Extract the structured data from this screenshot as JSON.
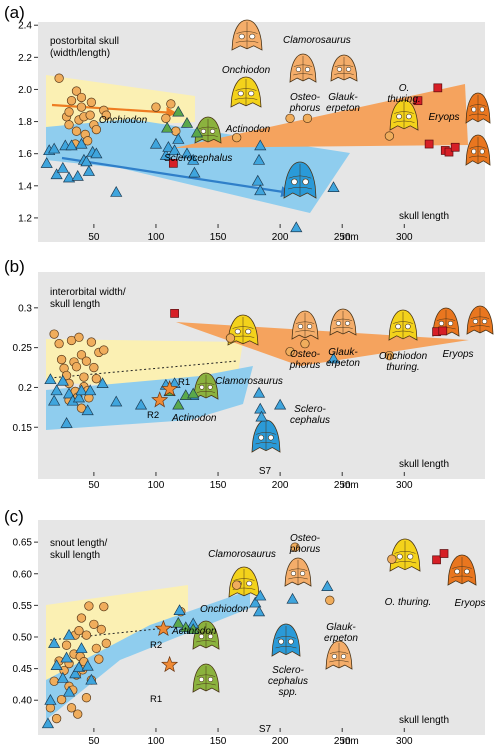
{
  "chart_data": [
    {
      "type": "scatter",
      "panel_label": "(a)",
      "ylabel_lines": [
        "postorbital skull",
        "(width/length)"
      ],
      "xlabel": "skull length",
      "x_unit": "mm",
      "x_ticks": [
        50,
        100,
        150,
        200,
        250,
        300
      ],
      "y_ticks": [
        1.2,
        1.4,
        1.6,
        1.8,
        2.0,
        2.2,
        2.4
      ],
      "y_tick_labels": [
        "1.2",
        "1.4",
        "1.6",
        "1.8",
        "2.0",
        "2.2",
        "2.4"
      ],
      "xlim": [
        5,
        365
      ],
      "ylim": [
        1.05,
        2.42
      ],
      "series": [
        {
          "marker": "circle",
          "color": "#f0ad5c",
          "points": [
            [
              22,
              2.07
            ],
            [
              28,
              1.83
            ],
            [
              30,
              1.78
            ],
            [
              30,
              1.86
            ],
            [
              32,
              1.93
            ],
            [
              35,
              1.66
            ],
            [
              36,
              1.74
            ],
            [
              36,
              1.99
            ],
            [
              38,
              1.81
            ],
            [
              40,
              1.89
            ],
            [
              40,
              1.95
            ],
            [
              42,
              1.83
            ],
            [
              43,
              1.72
            ],
            [
              45,
              1.68
            ],
            [
              47,
              1.84
            ],
            [
              48,
              1.92
            ],
            [
              50,
              1.78
            ],
            [
              52,
              1.75
            ],
            [
              58,
              1.87
            ],
            [
              60,
              1.84
            ],
            [
              100,
              1.89
            ],
            [
              108,
              1.82
            ],
            [
              112,
              1.91
            ],
            [
              116,
              1.74
            ],
            [
              165,
              1.7
            ],
            [
              208,
              1.82
            ],
            [
              222,
              1.82
            ],
            [
              288,
              1.71
            ]
          ]
        },
        {
          "marker": "triangle",
          "color": "#3fa5dd",
          "points": [
            [
              12,
              1.54
            ],
            [
              14,
              1.62
            ],
            [
              18,
              1.63
            ],
            [
              20,
              1.47
            ],
            [
              25,
              1.51
            ],
            [
              27,
              1.65
            ],
            [
              30,
              1.45
            ],
            [
              32,
              1.65
            ],
            [
              37,
              1.46
            ],
            [
              40,
              1.66
            ],
            [
              42,
              1.56
            ],
            [
              44,
              1.55
            ],
            [
              46,
              1.49
            ],
            [
              49,
              1.61
            ],
            [
              52,
              1.6
            ],
            [
              68,
              1.36
            ],
            [
              100,
              1.66
            ],
            [
              108,
              1.59
            ],
            [
              110,
              1.64
            ],
            [
              115,
              1.62
            ],
            [
              118,
              1.69
            ],
            [
              125,
              1.6
            ],
            [
              130,
              1.56
            ],
            [
              131,
              1.48
            ],
            [
              182,
              1.43
            ],
            [
              183,
              1.56
            ],
            [
              184,
              1.65
            ],
            [
              184,
              1.37
            ],
            [
              213,
              1.14
            ],
            [
              243,
              1.39
            ]
          ]
        },
        {
          "marker": "triangle",
          "color": "#5aa84a",
          "points": [
            [
              109,
              1.76
            ],
            [
              118,
              1.86
            ],
            [
              125,
              1.79
            ],
            [
              133,
              1.73
            ]
          ]
        },
        {
          "marker": "square",
          "color": "#d61f26",
          "points": [
            [
              114,
              1.54
            ],
            [
              311,
              1.93
            ],
            [
              320,
              1.66
            ],
            [
              327,
              2.01
            ],
            [
              333,
              1.62
            ],
            [
              336,
              1.61
            ],
            [
              341,
              1.64
            ]
          ]
        }
      ],
      "annotations": [
        "Clamorosaurus",
        "Onchiodon",
        "Osteo-",
        "phorus",
        "Glauk-",
        "erpeton",
        "O.",
        "thuring.",
        "Eryops",
        "Onchiodon",
        "Actinodon",
        "Sclerocephalus"
      ]
    },
    {
      "type": "scatter",
      "panel_label": "(b)",
      "ylabel_lines": [
        "interorbital width/",
        "skull length"
      ],
      "xlabel": "skull length",
      "x_unit": "mm",
      "x_ticks": [
        50,
        100,
        150,
        200,
        250,
        300
      ],
      "y_ticks": [
        0.15,
        0.2,
        0.25,
        0.3
      ],
      "y_tick_labels": [
        "0.15",
        "0.2",
        "0.25",
        "0.3"
      ],
      "xlim": [
        5,
        365
      ],
      "ylim": [
        0.085,
        0.345
      ],
      "series": [
        {
          "marker": "circle",
          "color": "#f0ad5c",
          "points": [
            [
              18,
              0.267
            ],
            [
              22,
              0.255
            ],
            [
              24,
              0.235
            ],
            [
              26,
              0.224
            ],
            [
              28,
              0.215
            ],
            [
              30,
              0.205
            ],
            [
              30,
              0.184
            ],
            [
              32,
              0.259
            ],
            [
              34,
              0.232
            ],
            [
              35,
              0.195
            ],
            [
              36,
              0.226
            ],
            [
              37,
              0.188
            ],
            [
              38,
              0.263
            ],
            [
              40,
              0.241
            ],
            [
              40,
              0.174
            ],
            [
              42,
              0.213
            ],
            [
              42,
              0.201
            ],
            [
              44,
              0.233
            ],
            [
              45,
              0.196
            ],
            [
              46,
              0.187
            ],
            [
              48,
              0.257
            ],
            [
              50,
              0.225
            ],
            [
              52,
              0.211
            ],
            [
              54,
              0.244
            ],
            [
              58,
              0.247
            ],
            [
              160,
              0.262
            ],
            [
              208,
              0.245
            ],
            [
              220,
              0.255
            ],
            [
              288,
              0.24
            ]
          ]
        },
        {
          "marker": "triangle",
          "color": "#3fa5dd",
          "points": [
            [
              15,
              0.21
            ],
            [
              18,
              0.183
            ],
            [
              20,
              0.196
            ],
            [
              25,
              0.208
            ],
            [
              28,
              0.155
            ],
            [
              30,
              0.192
            ],
            [
              33,
              0.183
            ],
            [
              38,
              0.187
            ],
            [
              40,
              0.196
            ],
            [
              45,
              0.171
            ],
            [
              47,
              0.196
            ],
            [
              57,
              0.205
            ],
            [
              68,
              0.182
            ],
            [
              88,
              0.178
            ],
            [
              108,
              0.203
            ],
            [
              115,
              0.205
            ],
            [
              130,
              0.19
            ],
            [
              183,
              0.193
            ],
            [
              184,
              0.173
            ],
            [
              185,
              0.163
            ],
            [
              200,
              0.178
            ],
            [
              243,
              0.236
            ]
          ]
        },
        {
          "marker": "triangle",
          "color": "#5aa84a",
          "points": [
            [
              111,
              0.195
            ],
            [
              118,
              0.178
            ],
            [
              124,
              0.19
            ],
            [
              130,
              0.192
            ]
          ]
        },
        {
          "marker": "star",
          "color": "#ef8a35",
          "points": [
            [
              103,
              0.184
            ],
            [
              111,
              0.198
            ]
          ]
        },
        {
          "marker": "square",
          "color": "#d61f26",
          "points": [
            [
              115,
              0.293
            ],
            [
              326,
              0.27
            ],
            [
              331,
              0.271
            ]
          ]
        }
      ],
      "trend_line": [
        [
          15,
          0.203
        ],
        [
          160,
          0.238
        ]
      ],
      "annotations": [
        "R1",
        "R2",
        "Actinodon",
        "Clamorosaurus",
        "Osteo-",
        "phorus",
        "Glauk-",
        "erpeton",
        "Onchiodon",
        "thuring.",
        "Eryops",
        "Sclero-",
        "cephalus",
        "S7"
      ]
    },
    {
      "type": "scatter",
      "panel_label": "(c)",
      "ylabel_lines": [
        "snout length/",
        "skull length"
      ],
      "xlabel": "skull length",
      "x_unit": "mm",
      "x_ticks": [
        50,
        100,
        150,
        200,
        250,
        300
      ],
      "y_ticks": [
        0.4,
        0.45,
        0.5,
        0.55,
        0.6,
        0.65
      ],
      "y_tick_labels": [
        "0.40",
        "0.45",
        "0.50",
        "0.55",
        "0.60",
        "0.65"
      ],
      "xlim": [
        5,
        365
      ],
      "ylim": [
        0.345,
        0.685
      ],
      "series": [
        {
          "marker": "circle",
          "color": "#f0ad5c",
          "points": [
            [
              15,
              0.388
            ],
            [
              18,
              0.43
            ],
            [
              20,
              0.371
            ],
            [
              22,
              0.462
            ],
            [
              24,
              0.401
            ],
            [
              26,
              0.447
            ],
            [
              28,
              0.487
            ],
            [
              30,
              0.422
            ],
            [
              30,
              0.458
            ],
            [
              32,
              0.388
            ],
            [
              33,
              0.416
            ],
            [
              34,
              0.473
            ],
            [
              35,
              0.503
            ],
            [
              36,
              0.44
            ],
            [
              37,
              0.378
            ],
            [
              38,
              0.51
            ],
            [
              39,
              0.469
            ],
            [
              40,
              0.53
            ],
            [
              41,
              0.448
            ],
            [
              42,
              0.461
            ],
            [
              44,
              0.404
            ],
            [
              44,
              0.503
            ],
            [
              46,
              0.549
            ],
            [
              48,
              0.432
            ],
            [
              50,
              0.52
            ],
            [
              52,
              0.482
            ],
            [
              54,
              0.465
            ],
            [
              56,
              0.512
            ],
            [
              58,
              0.548
            ],
            [
              60,
              0.49
            ],
            [
              120,
              0.54
            ],
            [
              165,
              0.582
            ],
            [
              212,
              0.642
            ],
            [
              240,
              0.558
            ],
            [
              290,
              0.623
            ]
          ]
        },
        {
          "marker": "triangle",
          "color": "#3fa5dd",
          "points": [
            [
              13,
              0.363
            ],
            [
              15,
              0.4
            ],
            [
              18,
              0.49
            ],
            [
              20,
              0.455
            ],
            [
              25,
              0.435
            ],
            [
              28,
              0.467
            ],
            [
              30,
              0.503
            ],
            [
              30,
              0.413
            ],
            [
              35,
              0.442
            ],
            [
              38,
              0.452
            ],
            [
              40,
              0.482
            ],
            [
              45,
              0.454
            ],
            [
              48,
              0.432
            ],
            [
              119,
              0.542
            ],
            [
              130,
              0.521
            ],
            [
              180,
              0.554
            ],
            [
              183,
              0.54
            ],
            [
              184,
              0.565
            ],
            [
              210,
              0.56
            ],
            [
              238,
              0.58
            ]
          ]
        },
        {
          "marker": "triangle",
          "color": "#5aa84a",
          "points": [
            [
              118,
              0.522
            ],
            [
              124,
              0.515
            ],
            [
              130,
              0.512
            ]
          ]
        },
        {
          "marker": "star",
          "color": "#ef8a35",
          "points": [
            [
              106,
              0.513
            ],
            [
              111,
              0.456
            ]
          ]
        },
        {
          "marker": "square",
          "color": "#d61f26",
          "points": [
            [
              326,
              0.622
            ],
            [
              332,
              0.632
            ]
          ]
        }
      ],
      "trend_line": [
        [
          15,
          0.504
        ],
        [
          150,
          0.54
        ]
      ],
      "annotations": [
        "R1",
        "R2",
        "Actinodon",
        "Onchiodon",
        "Clamorosaurus",
        "Osteo-",
        "phorus",
        "Glauk-",
        "erpeton",
        "Sclero-",
        "cephalus",
        "spp.",
        "O. thuring.",
        "Eryops",
        "S7"
      ]
    }
  ],
  "panels": {
    "a": {
      "label": "(a)",
      "ylabel_1": "postorbital skull",
      "ylabel_2": "(width/length)",
      "xlabel": "skull length",
      "unit": "mm",
      "names": {
        "clamorosaurus": "Clamorosaurus",
        "onchiodon_top": "Onchiodon",
        "osteo": "Osteo-",
        "phorus": "phorus",
        "glauk": "Glauk-",
        "erpeton": "erpeton",
        "o": "O.",
        "thuring": "thuring.",
        "eryops": "Eryops",
        "onchiodon": "Onchiodon",
        "actinodon": "Actinodon",
        "sclerocephalus": "Sclerocephalus"
      }
    },
    "b": {
      "label": "(b)",
      "ylabel_1": "interorbital width/",
      "ylabel_2": "skull length",
      "xlabel": "skull length",
      "unit": "mm",
      "names": {
        "r1": "R1",
        "r2": "R2",
        "actinodon": "Actinodon",
        "clamorosaurus": "Clamorosaurus",
        "osteo": "Osteo-",
        "phorus": "phorus",
        "glauk": "Glauk-",
        "erpeton": "erpeton",
        "onchiodon": "Onchiodon",
        "thuring": "thuring.",
        "eryops": "Eryops",
        "sclero": "Sclero-",
        "cephalus": "cephalus",
        "s7": "S7"
      }
    },
    "c": {
      "label": "(c)",
      "ylabel_1": "snout length/",
      "ylabel_2": "skull length",
      "xlabel": "skull length",
      "unit": "mm",
      "names": {
        "r1": "R1",
        "r2": "R2",
        "actinodon": "Actinodon",
        "onchiodon": "Onchiodon",
        "clamorosaurus": "Clamorosaurus",
        "osteo": "Osteo-",
        "phorus": "phorus",
        "glauk": "Glauk-",
        "erpeton": "erpeton",
        "sclero": "Sclero-",
        "cephalus": "cephalus",
        "spp": "spp.",
        "othuring": "O. thuring.",
        "eryops": "Eryops",
        "s7": "S7"
      }
    }
  },
  "colors": {
    "plot_bg": "#e6e6e6",
    "yellow_zone": "#fbf0b3",
    "blue_zone": "#8fcdee",
    "orange_zone": "#f5a35e",
    "circle": "#f0ad5c",
    "triangle_blue": "#3fa5dd",
    "triangle_green": "#5aa84a",
    "square": "#d61f26",
    "star": "#ef8a35",
    "arrow_orange": "#ee7d22",
    "arrow_blue": "#2f7fc9",
    "skull_yellow": "#f3d21b",
    "skull_orange": "#ef8f45",
    "skull_peach": "#f4ad6a",
    "skull_green": "#8bb23e",
    "skull_blue": "#2a9ad8",
    "skull_darkorange": "#e9761f"
  }
}
